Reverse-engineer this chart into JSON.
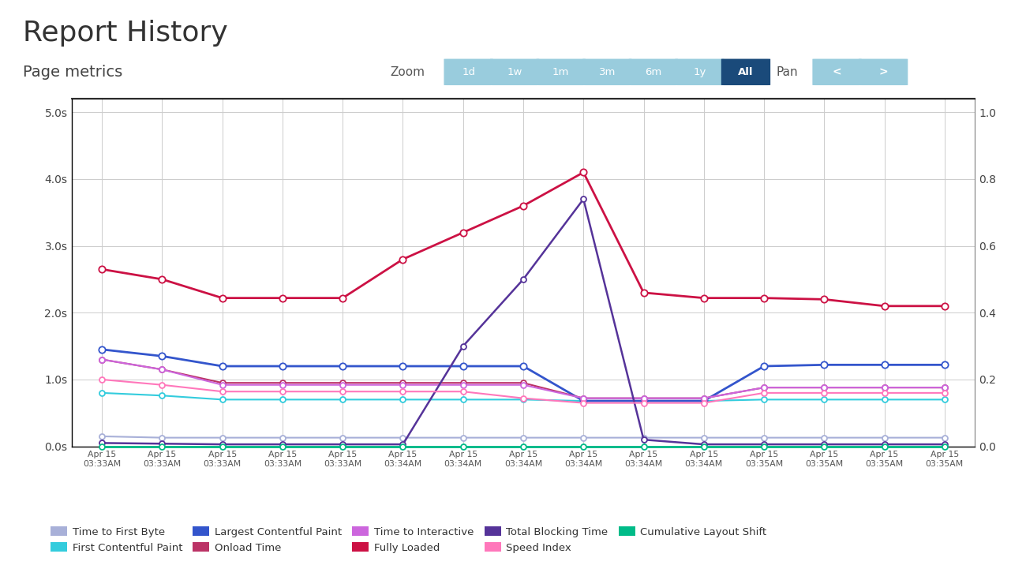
{
  "title": "Report History",
  "subtitle": "Page metrics",
  "x_labels": [
    "Apr 15\n03:33AM",
    "Apr 15\n03:33AM",
    "Apr 15\n03:33AM",
    "Apr 15\n03:33AM",
    "Apr 15\n03:33AM",
    "Apr 15\n03:34AM",
    "Apr 15\n03:34AM",
    "Apr 15\n03:34AM",
    "Apr 15\n03:34AM",
    "Apr 15\n03:34AM",
    "Apr 15\n03:34AM",
    "Apr 15\n03:35AM",
    "Apr 15\n03:35AM",
    "Apr 15\n03:35AM",
    "Apr 15\n03:35AM"
  ],
  "ylim_left": [
    0,
    5.2
  ],
  "ylim_right": [
    0,
    1.04
  ],
  "yticks_left": [
    0.0,
    1.0,
    2.0,
    3.0,
    4.0,
    5.0
  ],
  "ytick_labels_left": [
    "0.0s",
    "1.0s",
    "2.0s",
    "3.0s",
    "4.0s",
    "5.0s"
  ],
  "yticks_right": [
    0.0,
    0.2,
    0.4,
    0.6,
    0.8,
    1.0
  ],
  "series": {
    "time_to_first_byte": {
      "label": "Time to First Byte",
      "color": "#a8b0d8",
      "linewidth": 1.5,
      "marker": "o",
      "markersize": 5,
      "markerfacecolor": "white",
      "markeredgecolor": "#a8b0d8",
      "values": [
        0.15,
        0.13,
        0.13,
        0.13,
        0.13,
        0.13,
        0.13,
        0.13,
        0.13,
        0.13,
        0.13,
        0.13,
        0.13,
        0.13,
        0.13
      ],
      "axis": "left"
    },
    "first_contentful_paint": {
      "label": "First Contentful Paint",
      "color": "#33ccdd",
      "linewidth": 1.5,
      "marker": "o",
      "markersize": 5,
      "markerfacecolor": "white",
      "markeredgecolor": "#33ccdd",
      "values": [
        0.8,
        0.76,
        0.7,
        0.7,
        0.7,
        0.7,
        0.7,
        0.7,
        0.68,
        0.68,
        0.68,
        0.7,
        0.7,
        0.7,
        0.7
      ],
      "axis": "left"
    },
    "largest_contentful_paint": {
      "label": "Largest Contentful Paint",
      "color": "#3355cc",
      "linewidth": 2.0,
      "marker": "o",
      "markersize": 6,
      "markerfacecolor": "white",
      "markeredgecolor": "#3355cc",
      "values": [
        1.45,
        1.35,
        1.2,
        1.2,
        1.2,
        1.2,
        1.2,
        1.2,
        0.68,
        0.68,
        0.68,
        1.2,
        1.22,
        1.22,
        1.22
      ],
      "axis": "left"
    },
    "onload_time": {
      "label": "Onload Time",
      "color": "#bb3366",
      "linewidth": 1.5,
      "marker": "o",
      "markersize": 5,
      "markerfacecolor": "white",
      "markeredgecolor": "#bb3366",
      "values": [
        1.3,
        1.15,
        0.95,
        0.95,
        0.95,
        0.95,
        0.95,
        0.95,
        0.72,
        0.72,
        0.72,
        0.88,
        0.88,
        0.88,
        0.88
      ],
      "axis": "left"
    },
    "time_to_interactive": {
      "label": "Time to Interactive",
      "color": "#cc66dd",
      "linewidth": 1.5,
      "marker": "o",
      "markersize": 5,
      "markerfacecolor": "white",
      "markeredgecolor": "#cc66dd",
      "values": [
        1.3,
        1.15,
        0.92,
        0.92,
        0.92,
        0.92,
        0.92,
        0.92,
        0.72,
        0.72,
        0.72,
        0.88,
        0.88,
        0.88,
        0.88
      ],
      "axis": "left"
    },
    "fully_loaded": {
      "label": "Fully Loaded",
      "color": "#cc1144",
      "linewidth": 2.0,
      "marker": "o",
      "markersize": 6,
      "markerfacecolor": "white",
      "markeredgecolor": "#cc1144",
      "values": [
        2.65,
        2.5,
        2.22,
        2.22,
        2.22,
        2.8,
        3.2,
        3.6,
        4.1,
        2.3,
        2.22,
        2.22,
        2.2,
        2.1,
        2.1
      ],
      "axis": "left"
    },
    "total_blocking_time": {
      "label": "Total Blocking Time",
      "color": "#553399",
      "linewidth": 1.8,
      "marker": "o",
      "markersize": 5,
      "markerfacecolor": "white",
      "markeredgecolor": "#553399",
      "values": [
        0.05,
        0.04,
        0.03,
        0.03,
        0.03,
        0.03,
        1.5,
        2.5,
        3.7,
        0.1,
        0.03,
        0.03,
        0.03,
        0.03,
        0.03
      ],
      "axis": "left"
    },
    "speed_index": {
      "label": "Speed Index",
      "color": "#ff77bb",
      "linewidth": 1.5,
      "marker": "o",
      "markersize": 5,
      "markerfacecolor": "white",
      "markeredgecolor": "#ff77bb",
      "values": [
        1.0,
        0.92,
        0.82,
        0.82,
        0.82,
        0.82,
        0.82,
        0.72,
        0.65,
        0.65,
        0.65,
        0.8,
        0.8,
        0.8,
        0.8
      ],
      "axis": "left"
    },
    "cumulative_layout_shift": {
      "label": "Cumulative Layout Shift",
      "color": "#00bb88",
      "linewidth": 2.0,
      "marker": "o",
      "markersize": 5,
      "markerfacecolor": "white",
      "markeredgecolor": "#00bb88",
      "values": [
        0.0,
        0.0,
        0.0,
        0.0,
        0.0,
        0.0,
        0.0,
        0.0,
        0.0,
        0.0,
        0.0,
        0.0,
        0.0,
        0.0,
        0.0
      ],
      "axis": "right"
    }
  },
  "legend_order": [
    "time_to_first_byte",
    "first_contentful_paint",
    "largest_contentful_paint",
    "onload_time",
    "time_to_interactive",
    "fully_loaded",
    "total_blocking_time",
    "speed_index",
    "cumulative_layout_shift"
  ],
  "zoom_buttons": [
    "1d",
    "1w",
    "1m",
    "3m",
    "6m",
    "1y",
    "All"
  ],
  "zoom_active": "All",
  "bg_color": "#ffffff",
  "grid_color": "#cccccc",
  "chart_bg": "#ffffff",
  "title_fontsize": 26,
  "subtitle_fontsize": 14
}
